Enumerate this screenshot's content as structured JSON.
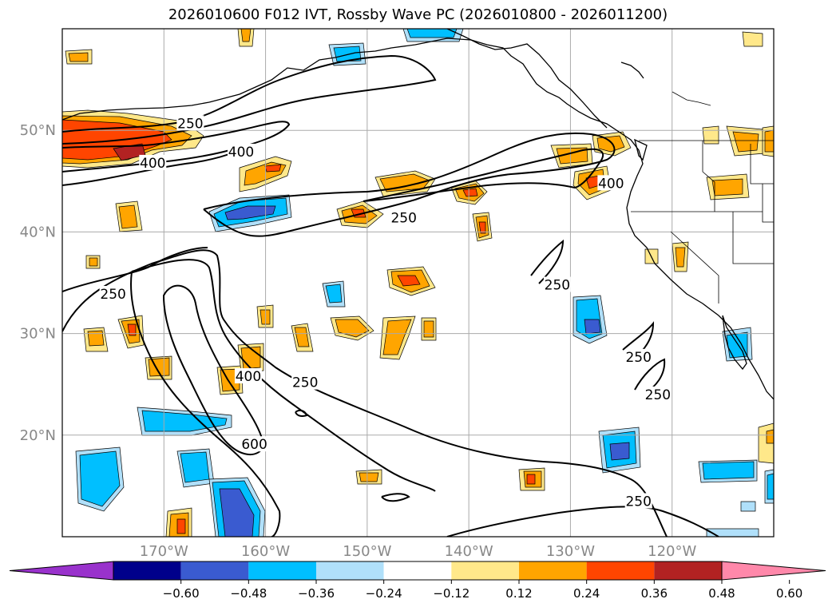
{
  "chart_data": {
    "type": "contour-map",
    "title": "2026010600 F012 IVT, Rossby Wave PC (2026010800 - 2026011200)",
    "map_extent": {
      "lon": [
        -180,
        -110
      ],
      "lat": [
        10,
        60
      ]
    },
    "grid": true,
    "longitude_ticks": [
      {
        "value": -170,
        "label": "170°W"
      },
      {
        "value": -160,
        "label": "160°W"
      },
      {
        "value": -150,
        "label": "150°W"
      },
      {
        "value": -140,
        "label": "140°W"
      },
      {
        "value": -130,
        "label": "130°W"
      },
      {
        "value": -120,
        "label": "120°W"
      }
    ],
    "latitude_ticks": [
      {
        "value": 50,
        "label": "50°N"
      },
      {
        "value": 40,
        "label": "40°N"
      },
      {
        "value": 30,
        "label": "30°N"
      },
      {
        "value": 20,
        "label": "20°N"
      }
    ],
    "ivt_contour_levels": [
      250,
      400,
      600
    ],
    "contour_labels": [
      {
        "text": "250",
        "lon": -167.4,
        "lat": 50.7
      },
      {
        "text": "400",
        "lon": -162.4,
        "lat": 47.9
      },
      {
        "text": "400",
        "lon": -171.1,
        "lat": 46.8
      },
      {
        "text": "250",
        "lon": -146.4,
        "lat": 41.4
      },
      {
        "text": "400",
        "lon": -126.0,
        "lat": 44.8
      },
      {
        "text": "250",
        "lon": -175.0,
        "lat": 33.9
      },
      {
        "text": "250",
        "lon": -131.3,
        "lat": 34.8
      },
      {
        "text": "400",
        "lon": -161.7,
        "lat": 25.8
      },
      {
        "text": "250",
        "lon": -156.1,
        "lat": 25.2
      },
      {
        "text": "250",
        "lon": -123.3,
        "lat": 27.7
      },
      {
        "text": "250",
        "lon": -121.4,
        "lat": 24.0
      },
      {
        "text": "600",
        "lon": -161.1,
        "lat": 19.1
      },
      {
        "text": "250",
        "lon": -123.3,
        "lat": 13.5
      }
    ],
    "colorbar": {
      "extend": "both",
      "colors": [
        "#9932cc",
        "#00008b",
        "#3a5bd0",
        "#00bfff",
        "#b0e0fa",
        "#ffffff",
        "#ffe88a",
        "#ffa500",
        "#ff4500",
        "#b22222",
        "#ff88aa"
      ],
      "ticks": [
        "−0.60",
        "−0.48",
        "−0.36",
        "−0.24",
        "−0.12",
        "0.12",
        "0.24",
        "0.36",
        "0.48",
        "0.60"
      ]
    }
  }
}
